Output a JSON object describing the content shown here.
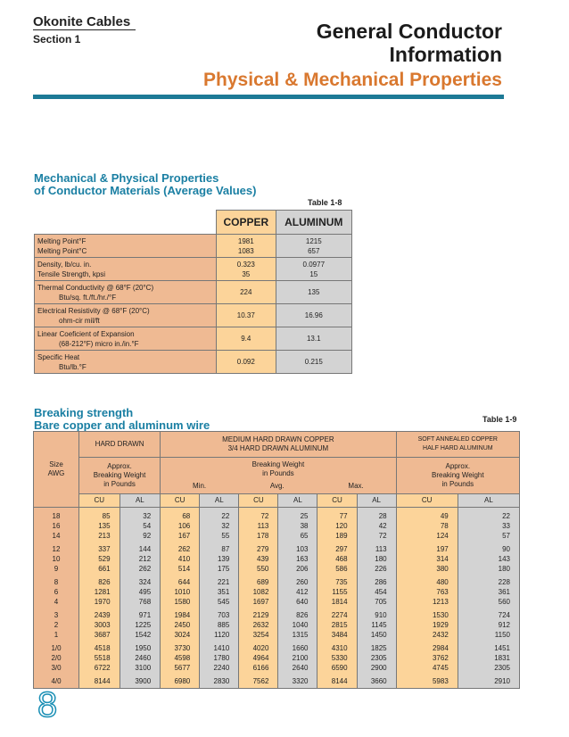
{
  "header": {
    "brand": "Okonite Cables",
    "section": "Section 1",
    "title_line1": "General Conductor",
    "title_line2": "Information",
    "subtitle": "Physical & Mechanical Properties"
  },
  "colors": {
    "accent_orange": "#d9782f",
    "accent_blue": "#1a7fa3",
    "copper_fill": "#fcd49a",
    "aluminum_fill": "#d3d3d3",
    "label_fill": "#efba93"
  },
  "table8": {
    "heading1": "Mechanical & Physical Properties",
    "heading2": "of Conductor Materials (Average Values)",
    "label": "Table 1-8",
    "columns": [
      "COPPER",
      "ALUMINUM"
    ],
    "rows": [
      {
        "l1": "Melting Point°F",
        "l2": "Melting Point°C",
        "cu1": "1981",
        "cu2": "1083",
        "al1": "1215",
        "al2": "657",
        "pair": true
      },
      {
        "l1": "Density, lb/cu. in.",
        "l2": "Tensile Strength, kpsi",
        "cu1": "0.323",
        "cu2": "35",
        "al1": "0.0977",
        "al2": "15",
        "pair": true
      },
      {
        "l1": "Thermal Conductivity @ 68°F (20°C)",
        "l2": "Btu/sq. ft./ft./hr./°F",
        "cu1": "224",
        "al1": "135"
      },
      {
        "l1": "Electrical Resistivity @ 68°F (20°C)",
        "l2": "ohm-cir mil/ft",
        "cu1": "10.37",
        "al1": "16.96"
      },
      {
        "l1": "Linear Coeficient of Expansion",
        "l2": "(68-212°F) micro in./in.°F",
        "cu1": "9.4",
        "al1": "13.1"
      },
      {
        "l1": "Specific Heat",
        "l2": "Btu/lb.°F",
        "cu1": "0.092",
        "al1": "0.215"
      }
    ]
  },
  "table9": {
    "heading1": "Breaking strength",
    "heading2": "Bare copper and aluminum wire",
    "label": "Table 1-9",
    "size_header": [
      "Size",
      "AWG"
    ],
    "group_hard": "HARD DRAWN",
    "group_medium": [
      "MEDIUM HARD DRAWN COPPER",
      "3/4 HARD DRAWN ALUMINUM"
    ],
    "group_soft": [
      "SOFT ANNEALED COPPER",
      "HALF HARD ALUMINUM"
    ],
    "approx": [
      "Approx.",
      "Breaking Weight",
      "in Pounds"
    ],
    "breaking": [
      "Breaking Weight",
      "in Pounds"
    ],
    "sub": [
      "Min.",
      "Avg.",
      "Max."
    ],
    "cols": [
      "CU",
      "AL",
      "CU",
      "AL",
      "CU",
      "AL",
      "CU",
      "AL",
      "CU",
      "AL"
    ],
    "rows": [
      [
        "18",
        "85",
        "32",
        "68",
        "22",
        "72",
        "25",
        "77",
        "28",
        "49",
        "22"
      ],
      [
        "16",
        "135",
        "54",
        "106",
        "32",
        "113",
        "38",
        "120",
        "42",
        "78",
        "33"
      ],
      [
        "14",
        "213",
        "92",
        "167",
        "55",
        "178",
        "65",
        "189",
        "72",
        "124",
        "57"
      ],
      [
        "12",
        "337",
        "144",
        "262",
        "87",
        "279",
        "103",
        "297",
        "113",
        "197",
        "90"
      ],
      [
        "10",
        "529",
        "212",
        "410",
        "139",
        "439",
        "163",
        "468",
        "180",
        "314",
        "143"
      ],
      [
        "9",
        "661",
        "262",
        "514",
        "175",
        "550",
        "206",
        "586",
        "226",
        "380",
        "180"
      ],
      [
        "8",
        "826",
        "324",
        "644",
        "221",
        "689",
        "260",
        "735",
        "286",
        "480",
        "228"
      ],
      [
        "6",
        "1281",
        "495",
        "1010",
        "351",
        "1082",
        "412",
        "1155",
        "454",
        "763",
        "361"
      ],
      [
        "4",
        "1970",
        "768",
        "1580",
        "545",
        "1697",
        "640",
        "1814",
        "705",
        "1213",
        "560"
      ],
      [
        "3",
        "2439",
        "971",
        "1984",
        "703",
        "2129",
        "826",
        "2274",
        "910",
        "1530",
        "724"
      ],
      [
        "2",
        "3003",
        "1225",
        "2450",
        "885",
        "2632",
        "1040",
        "2815",
        "1145",
        "1929",
        "912"
      ],
      [
        "1",
        "3687",
        "1542",
        "3024",
        "1120",
        "3254",
        "1315",
        "3484",
        "1450",
        "2432",
        "1150"
      ],
      [
        "1/0",
        "4518",
        "1950",
        "3730",
        "1410",
        "4020",
        "1660",
        "4310",
        "1825",
        "2984",
        "1451"
      ],
      [
        "2/0",
        "5518",
        "2460",
        "4598",
        "1780",
        "4964",
        "2100",
        "5330",
        "2305",
        "3762",
        "1831"
      ],
      [
        "3/0",
        "6722",
        "3100",
        "5677",
        "2240",
        "6166",
        "2640",
        "6590",
        "2900",
        "4745",
        "2305"
      ],
      [
        "4/0",
        "8144",
        "3900",
        "6980",
        "2830",
        "7562",
        "3320",
        "8144",
        "3660",
        "5983",
        "2910"
      ]
    ]
  },
  "page_number": "8"
}
